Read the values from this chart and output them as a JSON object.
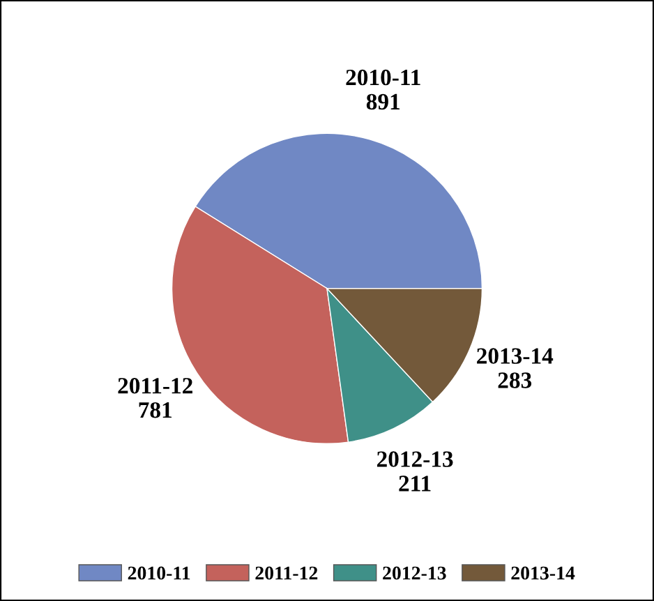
{
  "chart_data": {
    "type": "pie",
    "categories": [
      "2010-11",
      "2011-12",
      "2012-13",
      "2013-14"
    ],
    "values": [
      891,
      781,
      211,
      283
    ],
    "colors": [
      "#7088c4",
      "#c4625c",
      "#3f9088",
      "#73593a"
    ],
    "data_labels": true,
    "legend": "bottom"
  }
}
